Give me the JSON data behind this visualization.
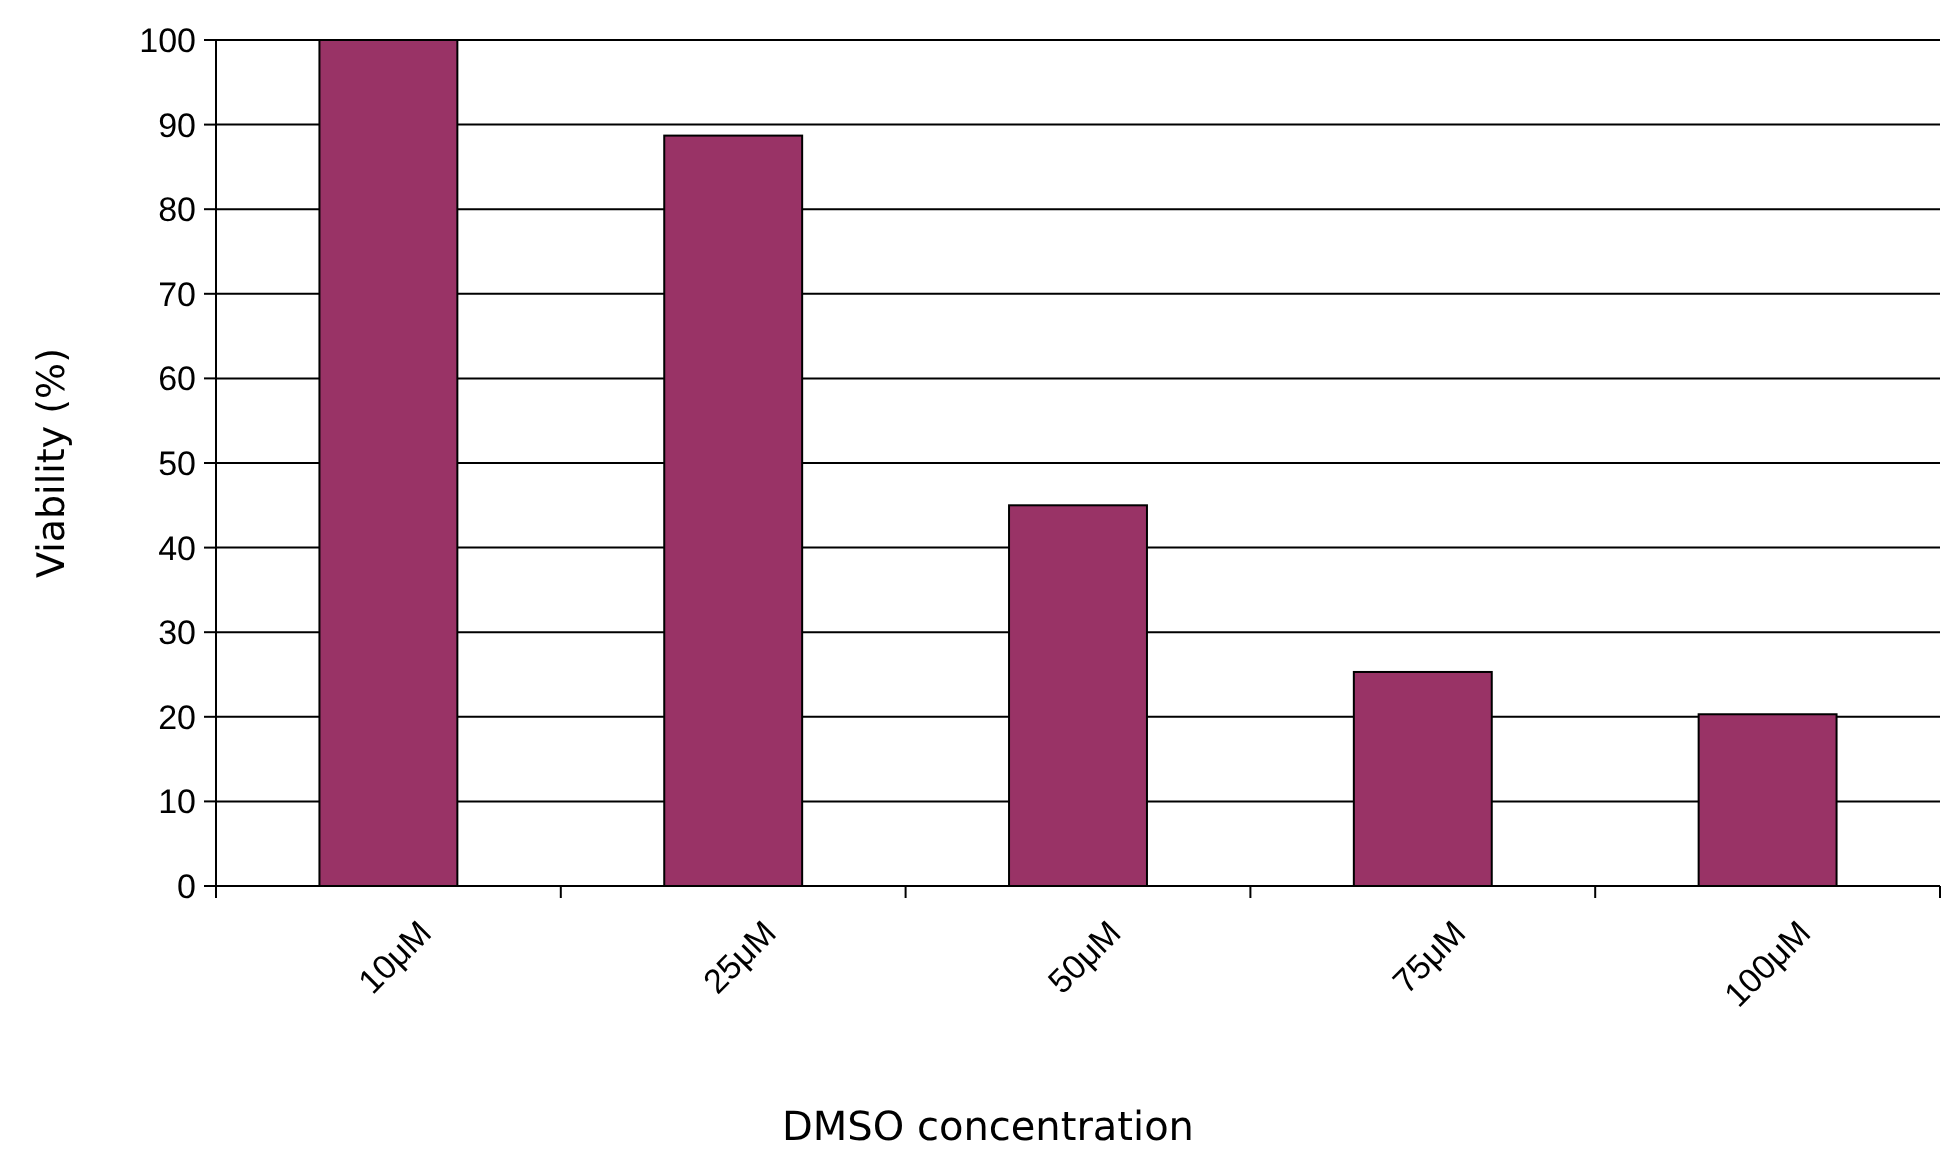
{
  "chart_data": {
    "type": "bar",
    "xlabel": "DMSO concentration",
    "ylabel": "Viability (%)",
    "categories": [
      "10μM",
      "25μM",
      "50μM",
      "75μM",
      "100μM"
    ],
    "values": [
      100,
      88.7,
      45,
      25.3,
      20.3
    ],
    "color": "#993366",
    "ylim": [
      0,
      100
    ],
    "yticks": [
      0,
      10,
      20,
      30,
      40,
      50,
      60,
      70,
      80,
      90,
      100
    ],
    "grid": "y"
  }
}
